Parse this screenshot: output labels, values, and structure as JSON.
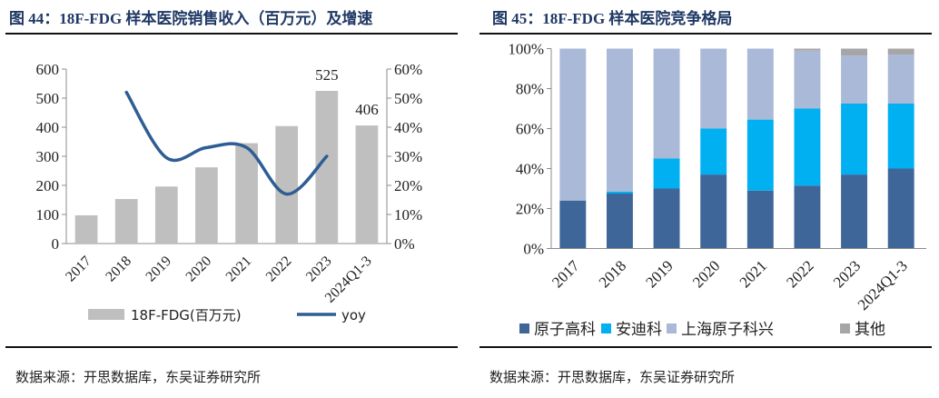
{
  "left": {
    "title": "图 44：18F-FDG 样本医院销售收入（百万元）及增速",
    "source": "数据来源：开思数据库，东吴证券研究所"
  },
  "right": {
    "title": "图 45：18F-FDG 样本医院竞争格局",
    "source": "数据来源：开思数据库，东吴证券研究所"
  },
  "chart_data": [
    {
      "type": "bar",
      "title": "18F-FDG 样本医院销售收入（百万元）及增速",
      "categories": [
        "2017",
        "2018",
        "2019",
        "2020",
        "2021",
        "2022",
        "2023",
        "2024Q1-3"
      ],
      "series": [
        {
          "name": "18F-FDG(百万元)",
          "type": "bar",
          "axis": "left",
          "color": "#bfbfbf",
          "values": [
            97,
            153,
            196,
            262,
            345,
            404,
            525,
            406
          ]
        },
        {
          "name": "yoy",
          "type": "line",
          "axis": "right",
          "color": "#2e5d94",
          "values": [
            null,
            0.52,
            0.295,
            0.33,
            0.33,
            0.17,
            0.3,
            null
          ]
        }
      ],
      "data_labels": [
        {
          "category": "2023",
          "text": "525"
        },
        {
          "category": "2024Q1-3",
          "text": "406"
        }
      ],
      "ylim": [
        0,
        600
      ],
      "yticks": [
        "0",
        "100",
        "200",
        "300",
        "400",
        "500",
        "600"
      ],
      "y2lim": [
        0,
        0.6
      ],
      "y2ticks": [
        "0%",
        "10%",
        "20%",
        "30%",
        "40%",
        "50%",
        "60%"
      ],
      "xlabel": "",
      "ylabel": "",
      "legend": "bottom",
      "grid": false
    },
    {
      "type": "bar",
      "stacked": true,
      "title": "18F-FDG 样本医院竞争格局",
      "categories": [
        "2017",
        "2018",
        "2019",
        "2020",
        "2021",
        "2022",
        "2023",
        "2024Q1-3"
      ],
      "series": [
        {
          "name": "原子高科",
          "color": "#3e6699",
          "values": [
            0.24,
            0.275,
            0.3,
            0.37,
            0.29,
            0.315,
            0.37,
            0.4
          ]
        },
        {
          "name": "安迪科",
          "color": "#00b0f0",
          "values": [
            0.0,
            0.01,
            0.15,
            0.23,
            0.355,
            0.385,
            0.355,
            0.325
          ]
        },
        {
          "name": "上海原子科兴",
          "color": "#a9b9d7",
          "values": [
            0.76,
            0.715,
            0.55,
            0.4,
            0.355,
            0.29,
            0.24,
            0.245
          ]
        },
        {
          "name": "其他",
          "color": "#a6a6a6",
          "values": [
            0.0,
            0.0,
            0.0,
            0.0,
            0.0,
            0.01,
            0.035,
            0.03
          ]
        }
      ],
      "ylim": [
        0,
        1
      ],
      "yticks": [
        "0%",
        "20%",
        "40%",
        "60%",
        "80%",
        "100%"
      ],
      "xlabel": "",
      "ylabel": "",
      "legend": "bottom",
      "grid": false
    }
  ]
}
